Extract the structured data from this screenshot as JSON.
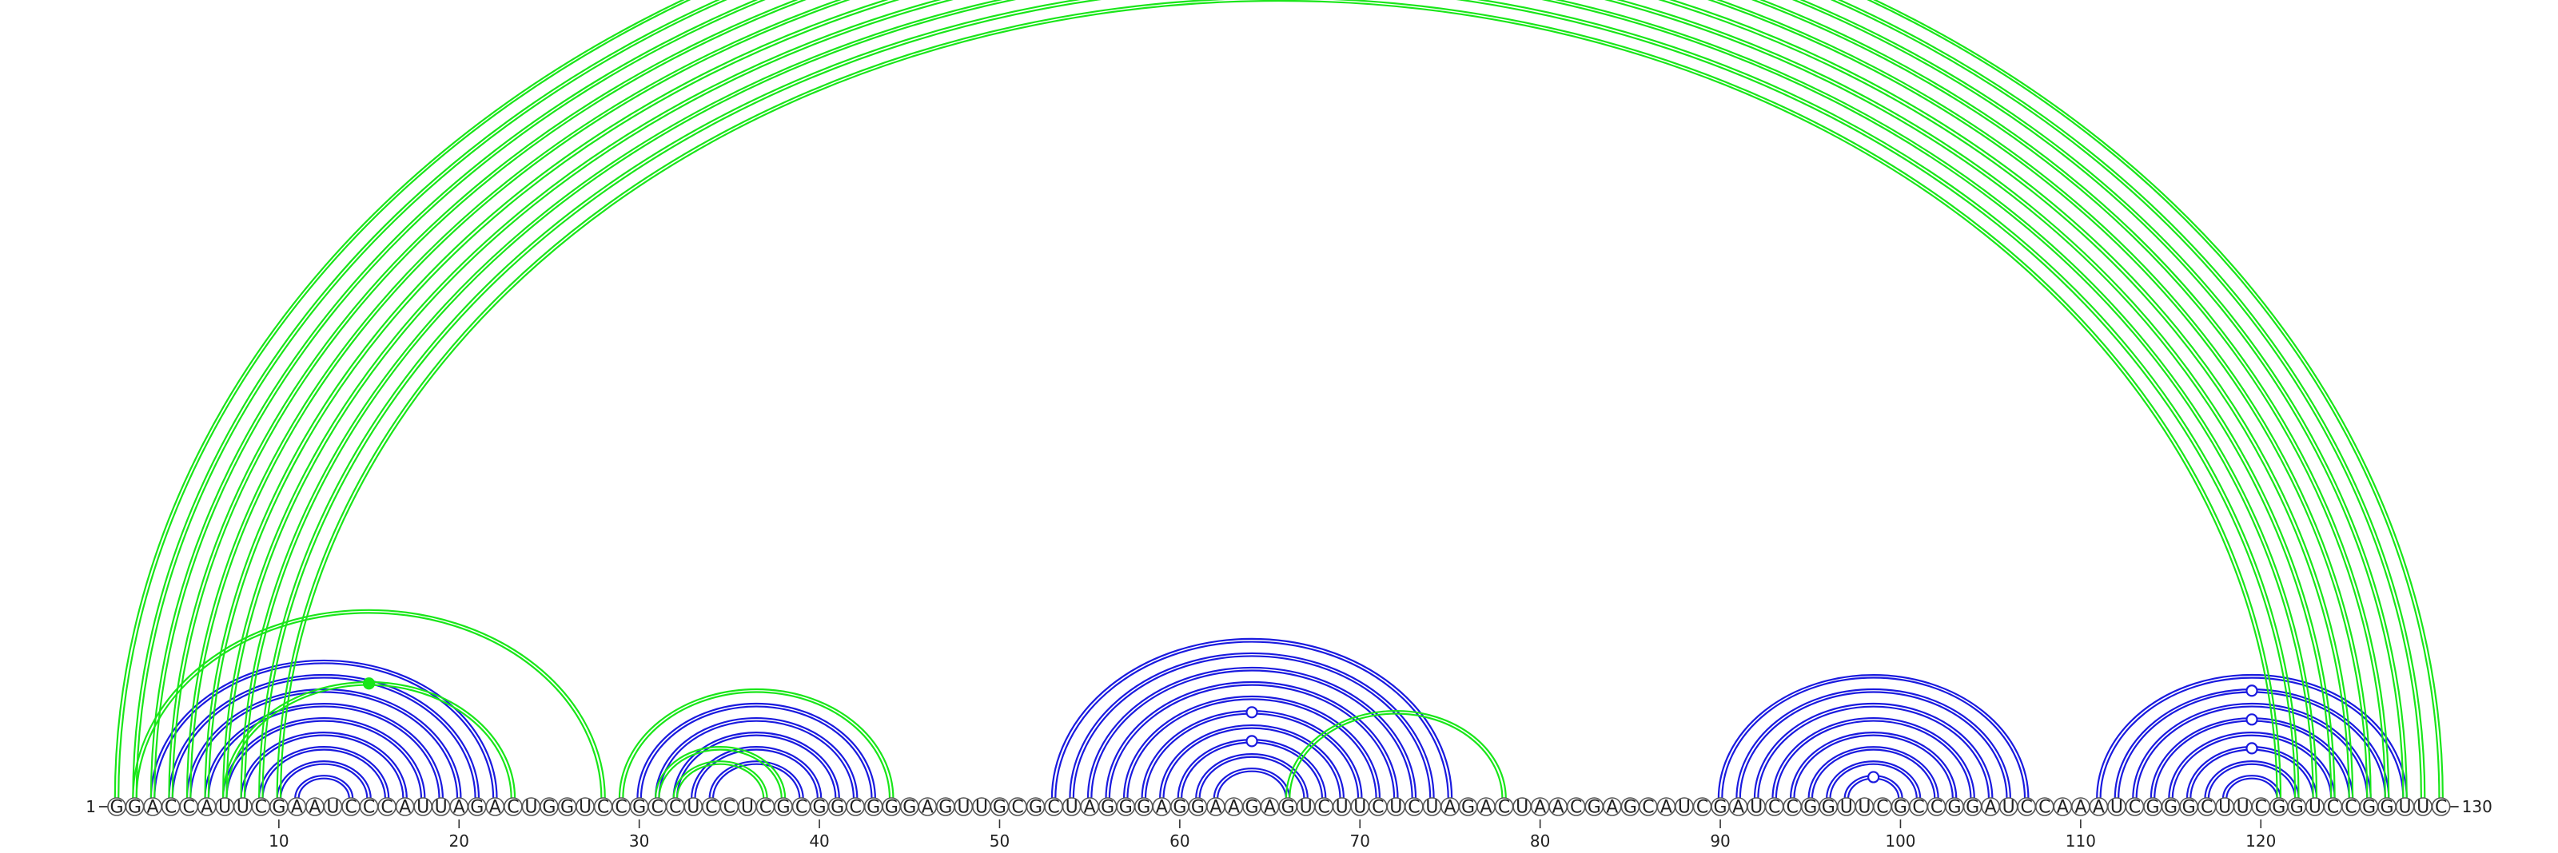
{
  "sequence": "GGACCAUUCGAAUCCCAUUAGACUGGUCCGCCUCCUCGCGGCGGGAGUUGCGCUAGGGAGGAAGAGUCUUCUCUAGACUAACGAGCAUCGAUCCGGUUCGCCGGAUCCAAAUCGGGCUUCGGUCCGGUUC",
  "start_label": "1",
  "end_label": "130",
  "ticks": [
    10,
    20,
    30,
    40,
    50,
    60,
    70,
    80,
    90,
    100,
    110,
    120
  ],
  "colors": {
    "blue": "#1a1adf",
    "green": "#19e619"
  },
  "arcs": [
    {
      "i": 3,
      "j": 22,
      "color": "blue",
      "double": true
    },
    {
      "i": 4,
      "j": 21,
      "color": "blue",
      "double": true
    },
    {
      "i": 5,
      "j": 20,
      "color": "blue",
      "double": true
    },
    {
      "i": 6,
      "j": 19,
      "color": "blue",
      "double": true
    },
    {
      "i": 7,
      "j": 18,
      "color": "blue",
      "double": true
    },
    {
      "i": 8,
      "j": 17,
      "color": "blue",
      "double": true
    },
    {
      "i": 9,
      "j": 16,
      "color": "blue",
      "double": true
    },
    {
      "i": 10,
      "j": 15,
      "color": "blue",
      "double": true
    },
    {
      "i": 11,
      "j": 14,
      "color": "blue",
      "double": true
    },
    {
      "i": 2,
      "j": 28,
      "color": "green",
      "double": true
    },
    {
      "i": 7,
      "j": 23,
      "color": "green",
      "double": true
    },
    {
      "i": 30,
      "j": 43,
      "color": "blue",
      "double": true
    },
    {
      "i": 31,
      "j": 42,
      "color": "blue",
      "double": true
    },
    {
      "i": 32,
      "j": 41,
      "color": "blue",
      "double": true
    },
    {
      "i": 33,
      "j": 40,
      "color": "blue",
      "double": true
    },
    {
      "i": 34,
      "j": 39,
      "color": "blue",
      "double": true
    },
    {
      "i": 29,
      "j": 44,
      "color": "green",
      "double": true
    },
    {
      "i": 31,
      "j": 38,
      "color": "green",
      "double": true
    },
    {
      "i": 32,
      "j": 37,
      "color": "green",
      "double": true
    },
    {
      "i": 53,
      "j": 75,
      "color": "blue",
      "double": true
    },
    {
      "i": 54,
      "j": 74,
      "color": "blue",
      "double": true
    },
    {
      "i": 55,
      "j": 73,
      "color": "blue",
      "double": true
    },
    {
      "i": 56,
      "j": 72,
      "color": "blue",
      "double": true
    },
    {
      "i": 57,
      "j": 71,
      "color": "blue",
      "double": true
    },
    {
      "i": 58,
      "j": 70,
      "color": "blue",
      "double": true
    },
    {
      "i": 59,
      "j": 69,
      "color": "blue",
      "double": true
    },
    {
      "i": 60,
      "j": 68,
      "color": "blue",
      "double": true
    },
    {
      "i": 61,
      "j": 67,
      "color": "blue",
      "double": true
    },
    {
      "i": 62,
      "j": 66,
      "color": "blue",
      "double": true
    },
    {
      "i": 66,
      "j": 78,
      "color": "green",
      "double": true
    },
    {
      "i": 90,
      "j": 107,
      "color": "blue",
      "double": true
    },
    {
      "i": 91,
      "j": 106,
      "color": "blue",
      "double": true
    },
    {
      "i": 92,
      "j": 105,
      "color": "blue",
      "double": true
    },
    {
      "i": 93,
      "j": 104,
      "color": "blue",
      "double": true
    },
    {
      "i": 94,
      "j": 103,
      "color": "blue",
      "double": true
    },
    {
      "i": 95,
      "j": 102,
      "color": "blue",
      "double": true
    },
    {
      "i": 96,
      "j": 101,
      "color": "blue",
      "double": true
    },
    {
      "i": 97,
      "j": 100,
      "color": "blue",
      "double": true
    },
    {
      "i": 111,
      "j": 128,
      "color": "blue",
      "double": true
    },
    {
      "i": 112,
      "j": 127,
      "color": "blue",
      "double": true
    },
    {
      "i": 113,
      "j": 126,
      "color": "blue",
      "double": true
    },
    {
      "i": 114,
      "j": 125,
      "color": "blue",
      "double": true
    },
    {
      "i": 115,
      "j": 124,
      "color": "blue",
      "double": true
    },
    {
      "i": 116,
      "j": 123,
      "color": "blue",
      "double": true
    },
    {
      "i": 117,
      "j": 122,
      "color": "blue",
      "double": true
    },
    {
      "i": 118,
      "j": 121,
      "color": "blue",
      "double": true
    },
    {
      "i": 1,
      "j": 130,
      "color": "green",
      "double": true
    },
    {
      "i": 2,
      "j": 129,
      "color": "green",
      "double": true
    },
    {
      "i": 3,
      "j": 128,
      "color": "green",
      "double": true
    },
    {
      "i": 4,
      "j": 127,
      "color": "green",
      "double": true
    },
    {
      "i": 5,
      "j": 126,
      "color": "green",
      "double": true
    },
    {
      "i": 6,
      "j": 125,
      "color": "green",
      "double": true
    },
    {
      "i": 7,
      "j": 124,
      "color": "green",
      "double": true
    },
    {
      "i": 8,
      "j": 123,
      "color": "green",
      "double": true
    },
    {
      "i": 9,
      "j": 122,
      "color": "green",
      "double": true
    },
    {
      "i": 10,
      "j": 121,
      "color": "green",
      "double": true
    }
  ],
  "markers": [
    {
      "i": 1,
      "j": 130,
      "color": "green",
      "filled": false
    },
    {
      "i": 7,
      "j": 23,
      "color": "green",
      "filled": true
    },
    {
      "i": 58,
      "j": 70,
      "color": "blue",
      "filled": false
    },
    {
      "i": 60,
      "j": 68,
      "color": "blue",
      "filled": false
    },
    {
      "i": 97,
      "j": 100,
      "color": "blue",
      "filled": false
    },
    {
      "i": 112,
      "j": 127,
      "color": "blue",
      "filled": false
    },
    {
      "i": 114,
      "j": 125,
      "color": "blue",
      "filled": false
    },
    {
      "i": 116,
      "j": 123,
      "color": "blue",
      "filled": false
    }
  ]
}
